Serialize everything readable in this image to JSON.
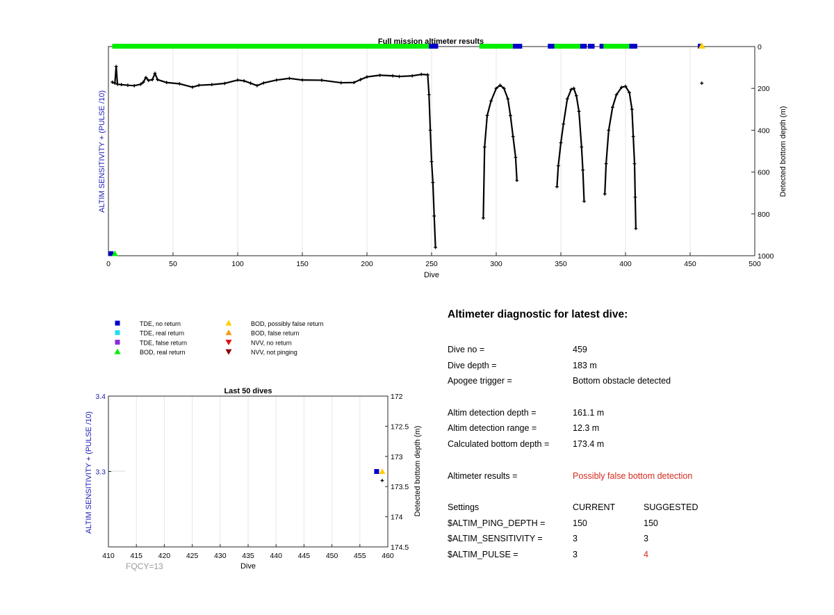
{
  "colors": {
    "tde_no_return": "#0000c8",
    "tde_real_return": "#22ddee",
    "tde_false_return": "#8a2be2",
    "bod_real_return": "#00ee00",
    "bod_possibly_false": "#ffcc00",
    "bod_false_return": "#f39c12",
    "nvv_no_return": "#e01010",
    "nvv_not_pinging": "#8b0000",
    "depth_trace": "#000000",
    "left_axis": "#1a1ab4",
    "warning_text": "#d42a1e"
  },
  "legend": [
    {
      "label": "TDE, no return",
      "symbol": "square",
      "color_key": "tde_no_return"
    },
    {
      "label": "TDE, real return",
      "symbol": "square",
      "color_key": "tde_real_return"
    },
    {
      "label": "TDE, false return",
      "symbol": "square",
      "color_key": "tde_false_return"
    },
    {
      "label": "BOD, real return",
      "symbol": "triangle-up",
      "color_key": "bod_real_return"
    },
    {
      "label": "BOD, possibly false return",
      "symbol": "triangle-up",
      "color_key": "bod_possibly_false"
    },
    {
      "label": "BOD, false return",
      "symbol": "triangle-up",
      "color_key": "bod_false_return"
    },
    {
      "label": "NVV, no return",
      "symbol": "triangle-down",
      "color_key": "nvv_no_return"
    },
    {
      "label": "NVV, not pinging",
      "symbol": "triangle-down",
      "color_key": "nvv_not_pinging"
    }
  ],
  "chart_data": [
    {
      "type": "scatter",
      "title": "Full mission altimeter results",
      "xlabel": "Dive",
      "ylabel_left": "ALTIM SENSITIVITY + (PULSE /10)",
      "ylabel_right": "Detected bottom depth (m)",
      "xlim": [
        0,
        500
      ],
      "ylim_right": [
        0,
        1000
      ],
      "right_axis_reversed": true,
      "xticks": [
        0,
        50,
        100,
        150,
        200,
        250,
        300,
        350,
        400,
        450,
        500
      ],
      "yticks_right": [
        0,
        200,
        400,
        600,
        800,
        1000
      ],
      "grid": "vertical",
      "status_track": [
        {
          "from": 4,
          "to": 248,
          "status": "BOD, real return"
        },
        {
          "from": 249,
          "to": 254,
          "status": "TDE, no return"
        },
        {
          "from": 288,
          "to": 313,
          "status": "BOD, real return"
        },
        {
          "from": 314,
          "to": 319,
          "status": "TDE, no return"
        },
        {
          "from": 341,
          "to": 345,
          "status": "TDE, no return"
        },
        {
          "from": 346,
          "to": 366,
          "status": "BOD, real return"
        },
        {
          "from": 366,
          "to": 369,
          "status": "TDE, no return"
        },
        {
          "from": 372,
          "to": 375,
          "status": "TDE, no return"
        },
        {
          "from": 381,
          "to": 384,
          "status": "TDE, no return"
        },
        {
          "from": 384,
          "to": 404,
          "status": "BOD, real return"
        },
        {
          "from": 404,
          "to": 408,
          "status": "TDE, no return"
        },
        {
          "from": 457,
          "to": 458,
          "status": "TDE, no return"
        },
        {
          "from": 459,
          "to": 459,
          "status": "BOD, possibly false return"
        }
      ],
      "left_axis_markers": [
        {
          "x": 2,
          "status": "TDE, no return"
        },
        {
          "x": 5,
          "status": "BOD, real return"
        }
      ],
      "depth_series": [
        {
          "name": "",
          "points": [
            [
              3,
              170
            ],
            [
              5,
              175
            ],
            [
              6,
              95
            ],
            [
              7,
              180
            ],
            [
              10,
              182
            ],
            [
              15,
              185
            ],
            [
              20,
              187
            ],
            [
              25,
              180
            ],
            [
              27,
              170
            ],
            [
              29,
              148
            ],
            [
              31,
              162
            ],
            [
              34,
              158
            ],
            [
              36,
              128
            ],
            [
              38,
              158
            ],
            [
              45,
              172
            ],
            [
              55,
              178
            ],
            [
              65,
              194
            ],
            [
              70,
              185
            ],
            [
              80,
              182
            ],
            [
              90,
              176
            ],
            [
              100,
              160
            ],
            [
              105,
              164
            ],
            [
              110,
              175
            ],
            [
              115,
              187
            ],
            [
              120,
              174
            ],
            [
              130,
              160
            ],
            [
              140,
              152
            ],
            [
              150,
              160
            ],
            [
              165,
              161
            ],
            [
              180,
              173
            ],
            [
              190,
              172
            ],
            [
              195,
              158
            ],
            [
              200,
              145
            ],
            [
              210,
              137
            ],
            [
              220,
              140
            ],
            [
              225,
              143
            ],
            [
              235,
              140
            ],
            [
              242,
              133
            ],
            [
              247,
              135
            ],
            [
              248,
              230
            ],
            [
              249,
              400
            ],
            [
              250,
              550
            ],
            [
              251,
              650
            ],
            [
              252,
              810
            ],
            [
              253,
              960
            ]
          ]
        },
        {
          "name": "",
          "points": [
            [
              290,
              820
            ],
            [
              291,
              480
            ],
            [
              293,
              330
            ],
            [
              296,
              260
            ],
            [
              300,
              200
            ],
            [
              303,
              185
            ],
            [
              306,
              200
            ],
            [
              309,
              250
            ],
            [
              311,
              330
            ],
            [
              313,
              430
            ],
            [
              315,
              530
            ],
            [
              316,
              640
            ]
          ]
        },
        {
          "name": "",
          "points": [
            [
              347,
              670
            ],
            [
              348,
              570
            ],
            [
              350,
              460
            ],
            [
              352,
              370
            ],
            [
              355,
              250
            ],
            [
              358,
              205
            ],
            [
              360,
              200
            ],
            [
              362,
              235
            ],
            [
              364,
              310
            ],
            [
              366,
              480
            ],
            [
              367,
              590
            ],
            [
              368,
              740
            ]
          ]
        },
        {
          "name": "",
          "points": [
            [
              384,
              705
            ],
            [
              385,
              560
            ],
            [
              387,
              400
            ],
            [
              390,
              290
            ],
            [
              393,
              230
            ],
            [
              397,
              195
            ],
            [
              400,
              190
            ],
            [
              403,
              220
            ],
            [
              405,
              300
            ],
            [
              406,
              430
            ],
            [
              407,
              560
            ],
            [
              407.5,
              720
            ],
            [
              408,
              870
            ]
          ]
        },
        {
          "name": "",
          "points": [
            [
              459,
              175
            ]
          ]
        }
      ]
    },
    {
      "type": "scatter",
      "title": "Last 50 dives",
      "xlabel": "Dive",
      "ylabel_left": "ALTIM SENSITIVITY + (PULSE /10)",
      "ylabel_right": "Detected bottom depth (m)",
      "xlim": [
        410,
        460
      ],
      "ylim_left": [
        3.2,
        3.4
      ],
      "ylim_right": [
        172,
        174.5
      ],
      "right_axis_reversed": true,
      "xticks": [
        410,
        415,
        420,
        425,
        430,
        435,
        440,
        445,
        450,
        455,
        460
      ],
      "yticks_left": [
        3.3,
        3.4
      ],
      "yticks_right": [
        172,
        172.5,
        173,
        173.5,
        174,
        174.5
      ],
      "grid": "vertical",
      "markers": [
        {
          "x": 458,
          "y_left": 3.3,
          "status": "TDE, no return"
        },
        {
          "x": 459,
          "y_left": 3.3,
          "status": "BOD, possibly false return"
        }
      ],
      "depth_points": [
        [
          459,
          173.4
        ]
      ],
      "footnote": "FQCY=13"
    }
  ],
  "diagnostic": {
    "title": "Altimeter diagnostic for latest dive:",
    "dive_no_label": "Dive no =",
    "dive_no": "459",
    "dive_depth_label": "Dive depth =",
    "dive_depth": "183 m",
    "apogee_label": "Apogee trigger =",
    "apogee": "Bottom obstacle detected",
    "detect_depth_label": "Altim detection depth =",
    "detect_depth": "161.1 m",
    "detect_range_label": "Altim detection range =",
    "detect_range": "12.3 m",
    "bottom_depth_label": "Calculated bottom depth =",
    "bottom_depth": "173.4 m",
    "results_label": "Altimeter results =",
    "results": "Possibly false bottom detection",
    "settings_header": "Settings",
    "current_header": "CURRENT",
    "suggested_header": "SUGGESTED",
    "settings": [
      {
        "name": "$ALTIM_PING_DEPTH =",
        "current": "150",
        "suggested": "150",
        "changed": false
      },
      {
        "name": "$ALTIM_SENSITIVITY =",
        "current": "3",
        "suggested": "3",
        "changed": false
      },
      {
        "name": "$ALTIM_PULSE =",
        "current": "3",
        "suggested": "4",
        "changed": true
      }
    ]
  }
}
